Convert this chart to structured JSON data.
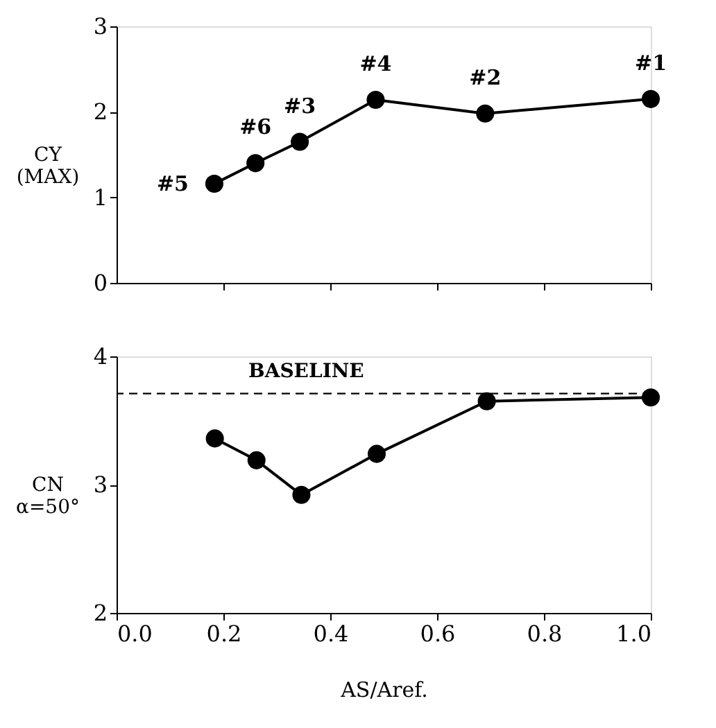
{
  "chart_data": [
    {
      "type": "line",
      "ylabel": "CY\n(MAX)",
      "x": [
        0.183,
        0.26,
        0.343,
        0.485,
        0.69,
        1.0
      ],
      "series": [
        {
          "color": "#000000",
          "values": [
            1.16,
            1.4,
            1.65,
            2.14,
            1.98,
            2.15
          ]
        }
      ],
      "marker": "circle",
      "line_style": "solid",
      "xlim": [
        0,
        1
      ],
      "xticks": [
        0.2,
        0.4,
        0.6,
        0.8,
        1.0
      ],
      "ylim": [
        0,
        3
      ],
      "yticks": [
        0,
        1,
        2,
        3
      ],
      "tick_labels": "y",
      "grid": false,
      "annotations": [
        {
          "text": "#5",
          "x": 0.183,
          "y": 1.16
        },
        {
          "text": "#6",
          "x": 0.26,
          "y": 1.4
        },
        {
          "text": "#3",
          "x": 0.343,
          "y": 1.65
        },
        {
          "text": "#4",
          "x": 0.485,
          "y": 2.14
        },
        {
          "text": "#2",
          "x": 0.69,
          "y": 1.98
        },
        {
          "text": "#1",
          "x": 1.0,
          "y": 2.15
        }
      ]
    },
    {
      "type": "line",
      "ylabel": "CN\nα=50°",
      "xlabel": "AS/Aref.",
      "x": [
        0.184,
        0.262,
        0.346,
        0.487,
        0.693,
        1.0
      ],
      "series": [
        {
          "color": "#000000",
          "values": [
            3.36,
            3.19,
            2.92,
            3.24,
            3.65,
            3.68
          ]
        }
      ],
      "marker": "circle",
      "line_style": "solid",
      "xlim": [
        0,
        1
      ],
      "xticks": [
        {
          "value": 0,
          "label": "0.0"
        },
        0.2,
        0.4,
        0.6,
        0.8,
        {
          "value": 1,
          "label": "1.0"
        }
      ],
      "ylim": [
        2,
        4
      ],
      "yticks": [
        2,
        3,
        4
      ],
      "grid": false,
      "ref_lines": [
        {
          "axis": "y",
          "value": 3.71,
          "label": "BASELINE",
          "color": "#000000",
          "line_style": "dashed"
        }
      ]
    }
  ]
}
